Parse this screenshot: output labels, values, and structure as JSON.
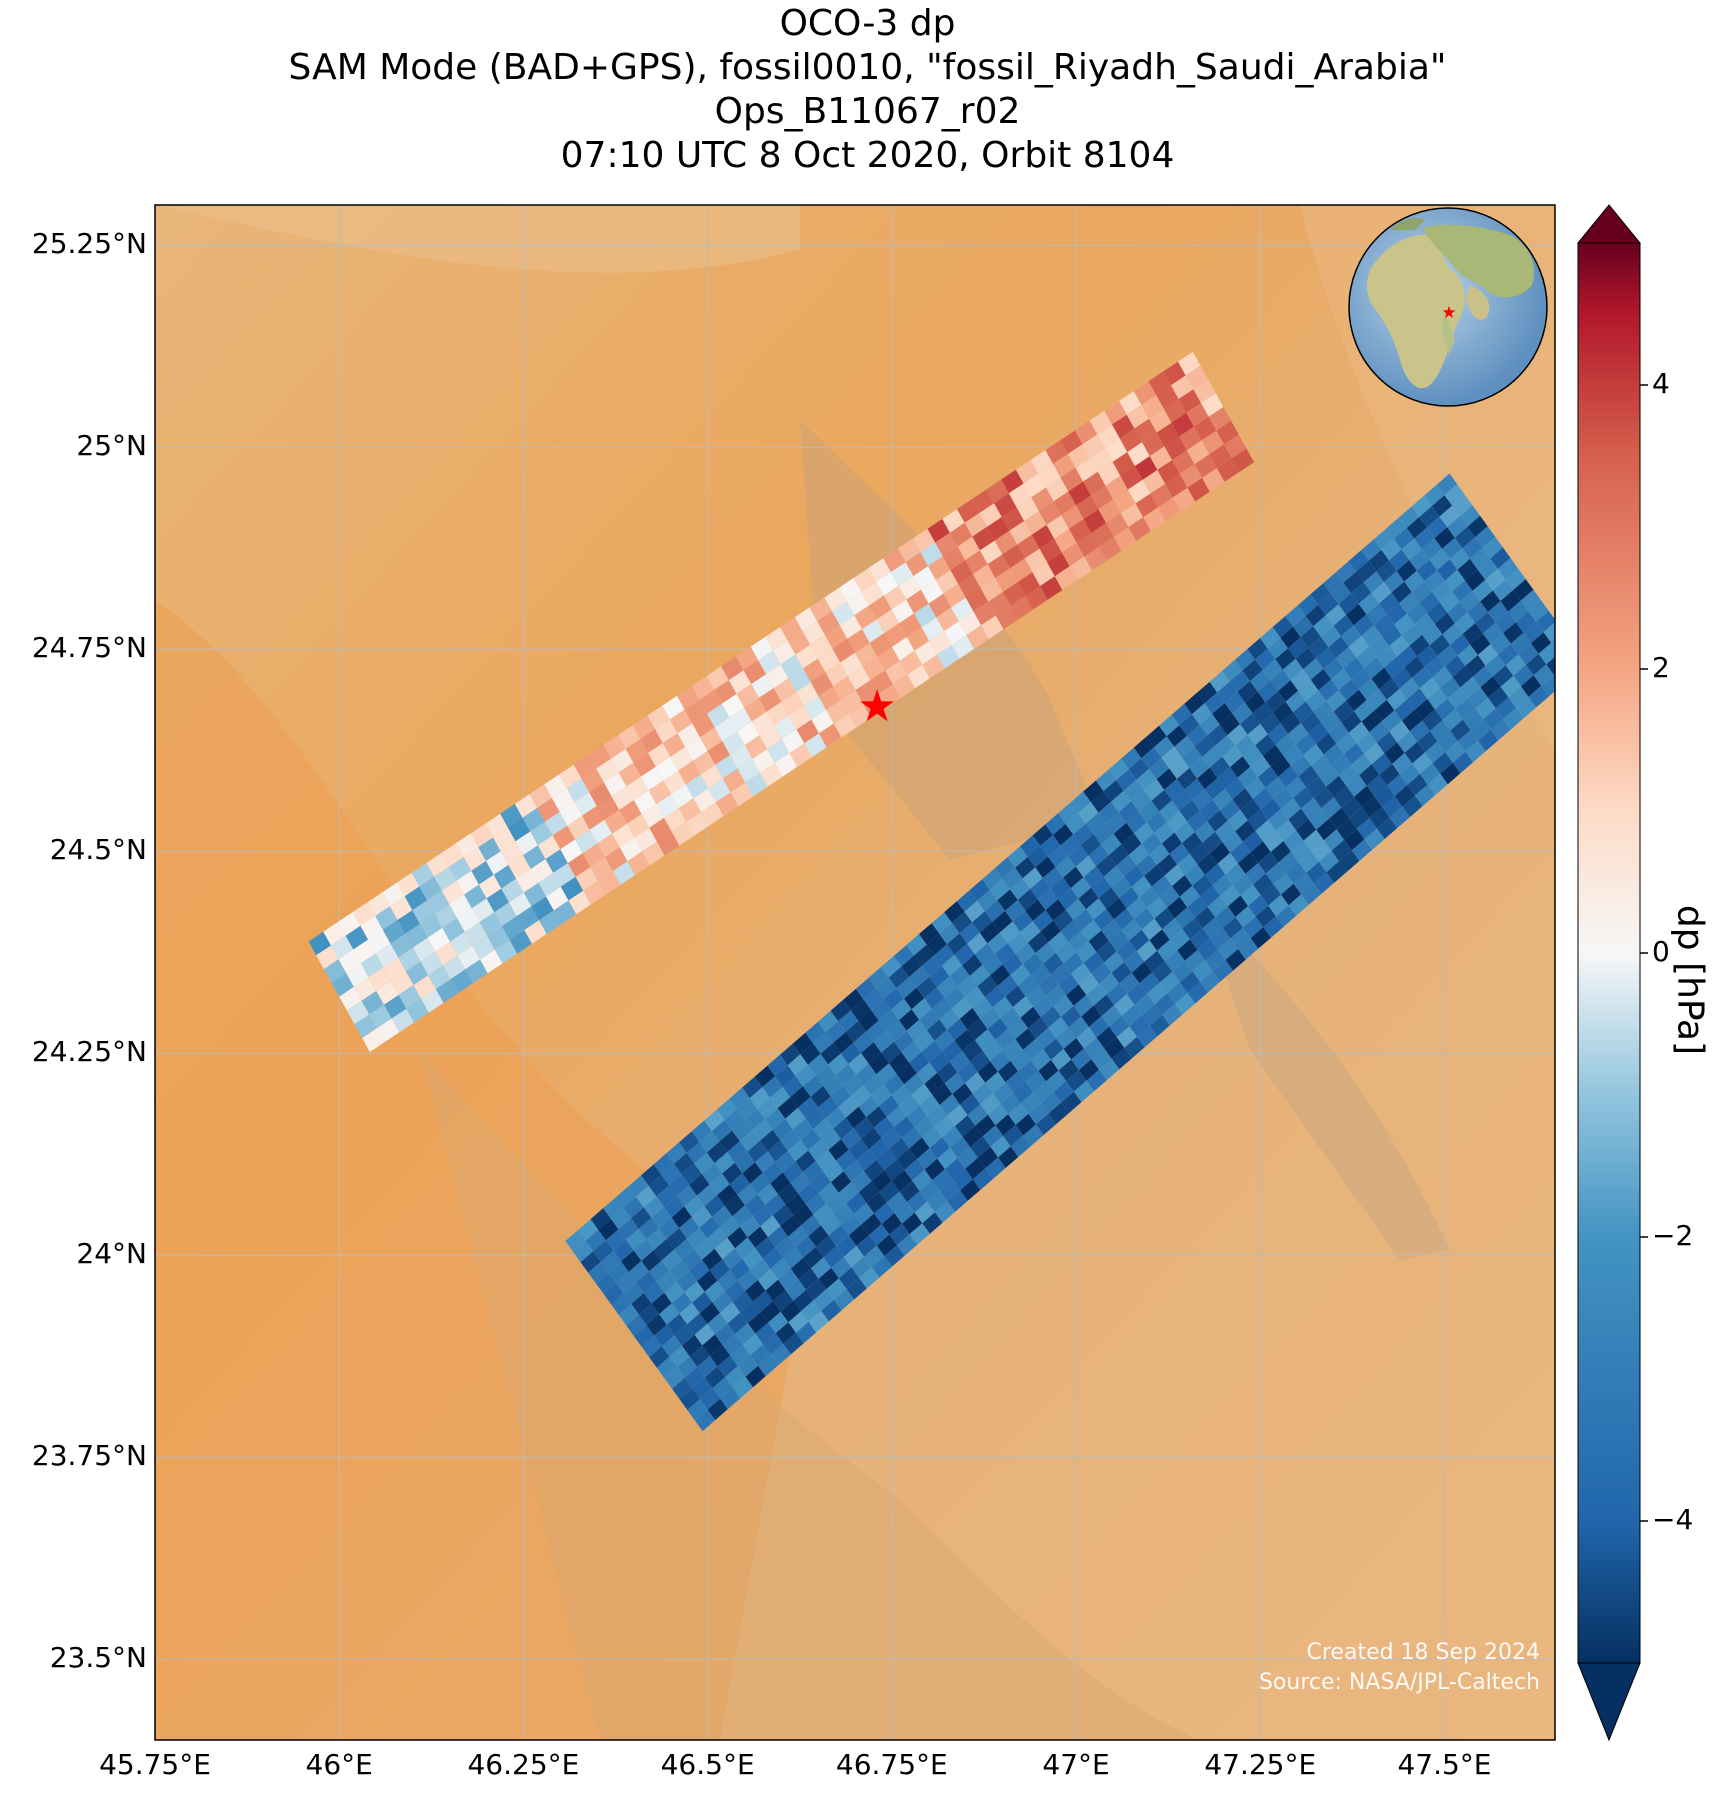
{
  "title_lines": [
    "OCO-3 dp",
    "SAM Mode (BAD+GPS), fossil0010, \"fossil_Riyadh_Saudi_Arabia\"",
    "Ops_B11067_r02",
    "07:10 UTC 8 Oct 2020, Orbit 8104"
  ],
  "map": {
    "lon_range": [
      45.75,
      47.65
    ],
    "lat_range": [
      23.4,
      25.3
    ],
    "lon_ticks": [
      "45.75°E",
      "46°E",
      "46.25°E",
      "46.5°E",
      "46.75°E",
      "47°E",
      "47.25°E",
      "47.5°E"
    ],
    "lat_ticks": [
      "25.25°N",
      "25°N",
      "24.75°N",
      "24.5°N",
      "24.25°N",
      "24°N",
      "23.75°N",
      "23.5°N"
    ],
    "basemap": "satellite desert terrain",
    "target_marker": {
      "label": "Riyadh target",
      "lon": 46.73,
      "lat": 24.68,
      "color": "#ff0000"
    },
    "inset_globe": "globe-icon with Riyadh marker",
    "credit_lines": [
      "Created 18 Sep 2024",
      "Source: NASA/JPL-Caltech"
    ]
  },
  "colorbar": {
    "label": "dp [hPa]",
    "range": [
      -5,
      5
    ],
    "ticks": [
      "4",
      "2",
      "0",
      "−2",
      "−4"
    ],
    "tick_values": [
      4,
      2,
      0,
      -2,
      -4
    ],
    "colormap": "RdBu_r",
    "extend": "both"
  },
  "chart_data": {
    "type": "heatmap",
    "title": "OCO-3 dp",
    "xlabel": "",
    "ylabel": "",
    "colorbar_label": "dp [hPa]",
    "swaths": [
      {
        "name": "northwest swath",
        "start": [
          46.0,
          24.32
        ],
        "end": [
          47.2,
          25.05
        ],
        "mean_dp_north": 2.5,
        "mean_dp_middle": 1.0,
        "mean_dp_south": -0.5
      },
      {
        "name": "southeast swath",
        "start": [
          46.4,
          23.9
        ],
        "end": [
          47.6,
          24.85
        ],
        "mean_dp": -3.5
      }
    ]
  }
}
